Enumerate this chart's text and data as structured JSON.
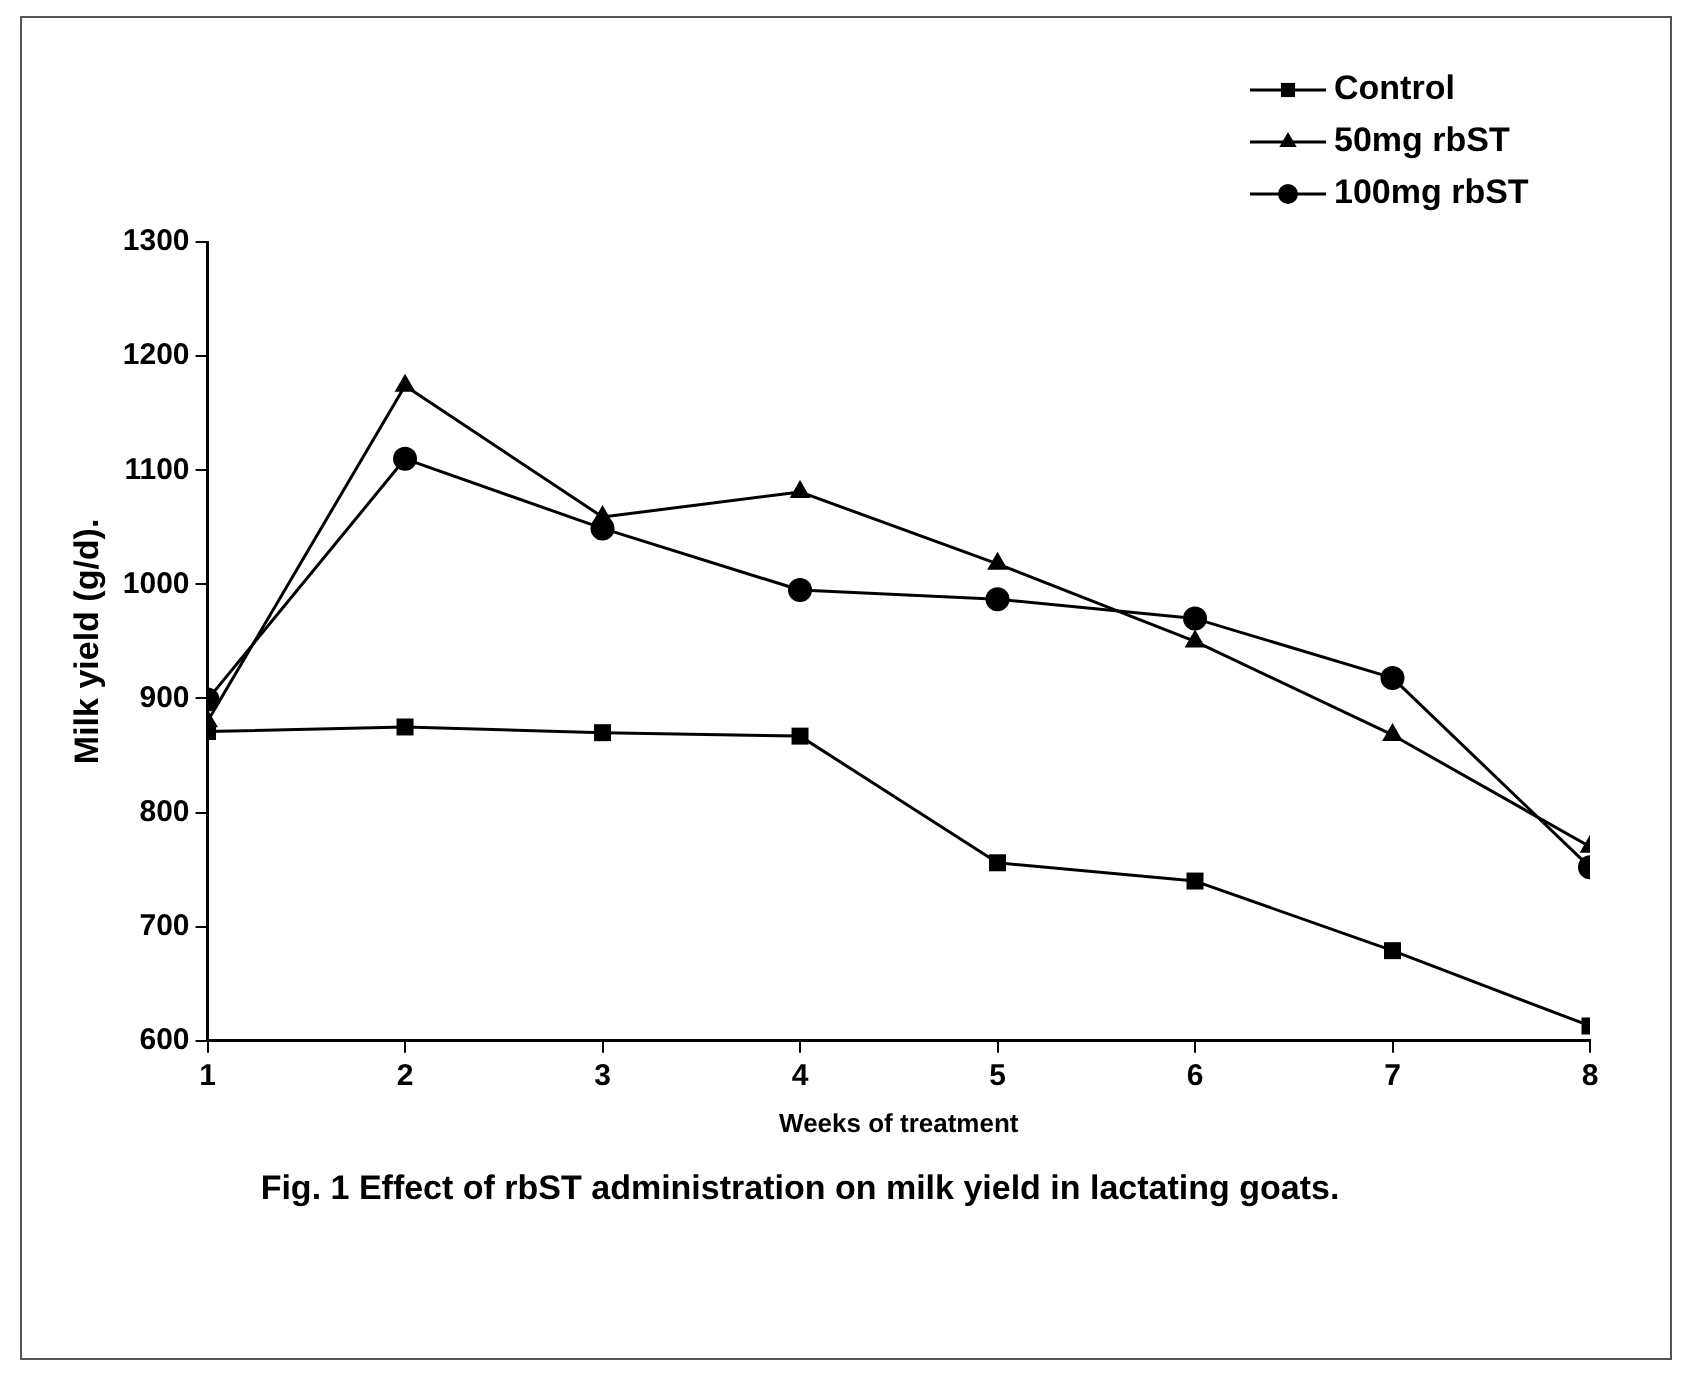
{
  "chart_data": {
    "type": "line",
    "xlabel": "Weeks of treatment",
    "ylabel": "Milk yield (g/d).",
    "annotations": [
      "Fig. 1 Effect of rbST administration on milk yield in lactating goats."
    ],
    "x": [
      1,
      2,
      3,
      4,
      5,
      6,
      7,
      8
    ],
    "series": [
      {
        "name": "Control",
        "color": "#000000",
        "marker": "square",
        "values": [
          871,
          875,
          870,
          867,
          756,
          740,
          679,
          613
        ]
      },
      {
        "name": "50mg rbST",
        "color": "#000000",
        "marker": "triangle",
        "values": [
          880,
          1174,
          1059,
          1081,
          1018,
          950,
          868,
          770
        ]
      },
      {
        "name": "100mg rbST",
        "color": "#000000",
        "marker": "circle",
        "values": [
          899,
          1110,
          1049,
          995,
          987,
          970,
          918,
          752
        ]
      }
    ],
    "xlim": [
      1,
      8
    ],
    "xticks": [
      1,
      2,
      3,
      4,
      5,
      6,
      7,
      8
    ],
    "ylim": [
      600,
      1300
    ],
    "yticks": [
      600,
      700,
      800,
      900,
      1000,
      1100,
      1200,
      1300
    ],
    "grid": false,
    "legend": "top right",
    "line_style": "solid"
  }
}
